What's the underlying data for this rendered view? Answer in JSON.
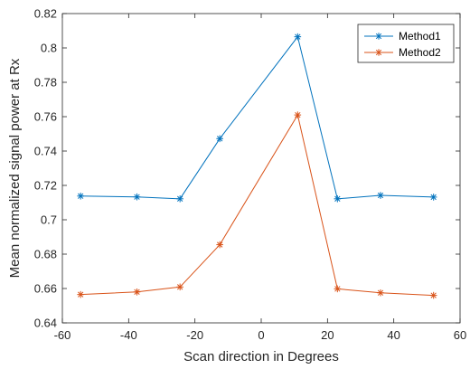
{
  "chart_data": {
    "type": "line",
    "title": "",
    "xlabel": "Scan direction in Degrees",
    "ylabel": "Mean normalized signal power at Rx",
    "xlim": [
      -60,
      60
    ],
    "ylim": [
      0.64,
      0.82
    ],
    "xticks": [
      "-60",
      "-40",
      "-20",
      "0",
      "20",
      "40",
      "60"
    ],
    "yticks": [
      "0.64",
      "0.66",
      "0.68",
      "0.7",
      "0.72",
      "0.74",
      "0.76",
      "0.78",
      "0.8",
      "0.82"
    ],
    "grid": false,
    "legend_position": "top-right",
    "x": [
      -54.5,
      -37.5,
      -24.5,
      -12.5,
      11,
      23,
      36,
      52
    ],
    "series": [
      {
        "name": "Method1",
        "color": "#0072BD",
        "marker": "asterisk",
        "values": [
          0.7138,
          0.7133,
          0.7122,
          0.7472,
          0.8065,
          0.7122,
          0.7142,
          0.7132
        ]
      },
      {
        "name": "Method2",
        "color": "#D95319",
        "marker": "asterisk",
        "values": [
          0.6565,
          0.658,
          0.6609,
          0.6855,
          0.761,
          0.6598,
          0.6575,
          0.656
        ]
      }
    ]
  }
}
